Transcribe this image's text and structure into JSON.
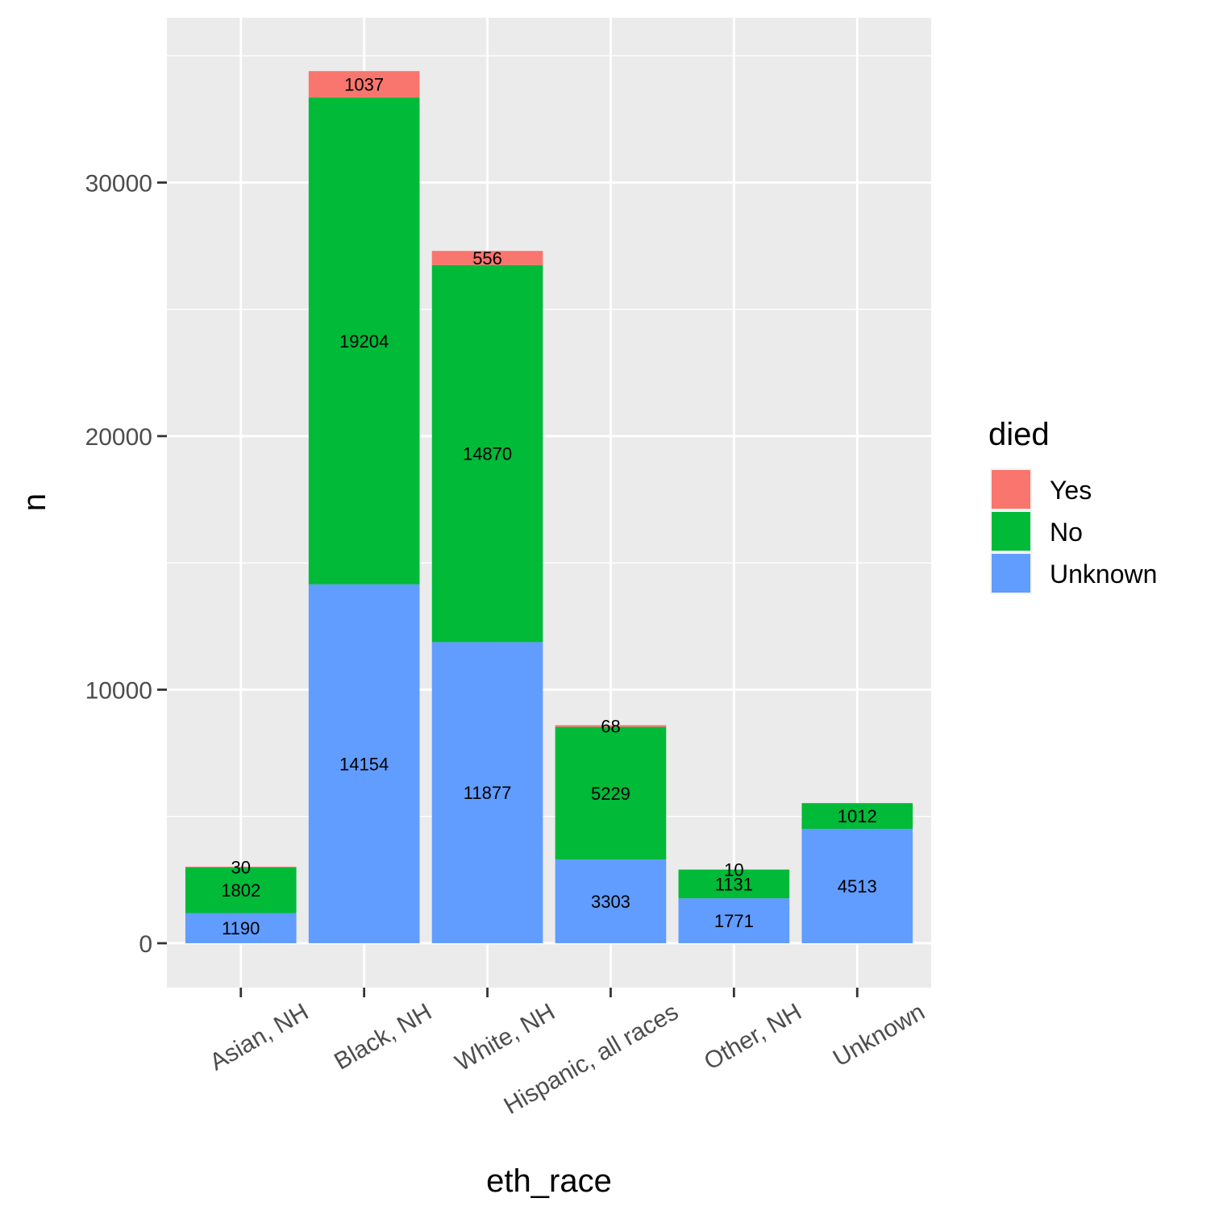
{
  "chart_data": {
    "type": "bar",
    "stacked": true,
    "categories": [
      "Asian, NH",
      "Black, NH",
      "White, NH",
      "Hispanic, all races",
      "Other, NH",
      "Unknown"
    ],
    "series": [
      {
        "name": "Unknown",
        "color": "#619CFF",
        "values": [
          1190,
          14154,
          11877,
          3303,
          1771,
          4513
        ]
      },
      {
        "name": "No",
        "color": "#00BA38",
        "values": [
          1802,
          19204,
          14870,
          5229,
          1131,
          1012
        ]
      },
      {
        "name": "Yes",
        "color": "#F8766D",
        "values": [
          30,
          1037,
          556,
          68,
          10,
          null
        ]
      }
    ],
    "xlabel": "eth_race",
    "ylabel": "n",
    "y_ticks": [
      0,
      10000,
      20000,
      30000
    ],
    "ylim": [
      -1750,
      36500
    ],
    "grid": true,
    "legend": {
      "title": "died",
      "position": "right",
      "order": [
        "Yes",
        "No",
        "Unknown"
      ]
    },
    "panel_background": "#EBEBEB",
    "gridline_color": "#FFFFFF"
  }
}
